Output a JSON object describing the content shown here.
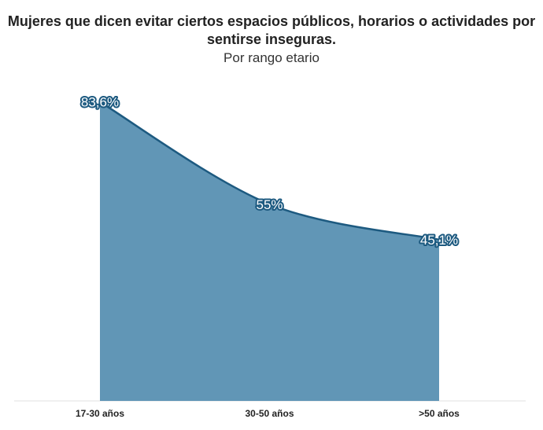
{
  "chart_data": {
    "type": "area",
    "title_line1": "Mujeres que dicen evitar ciertos espacios públicos, horarios o actividades por",
    "title_line2": "sentirse inseguras.",
    "subtitle": "Por rango etario",
    "categories": [
      "17-30 años",
      "30-50 años",
      ">50 años"
    ],
    "values": [
      83.6,
      55,
      45.1
    ],
    "data_labels": [
      "83,6%",
      "55%",
      "45,1%"
    ],
    "ylim": [
      0,
      100
    ],
    "grid": false,
    "legend": "none",
    "colors": {
      "area_fill": "#6196b6",
      "line": "#1d5a80",
      "label_outline": "#1d5a80",
      "label_text": "#ffffff",
      "baseline": "#e2e2e2"
    }
  }
}
